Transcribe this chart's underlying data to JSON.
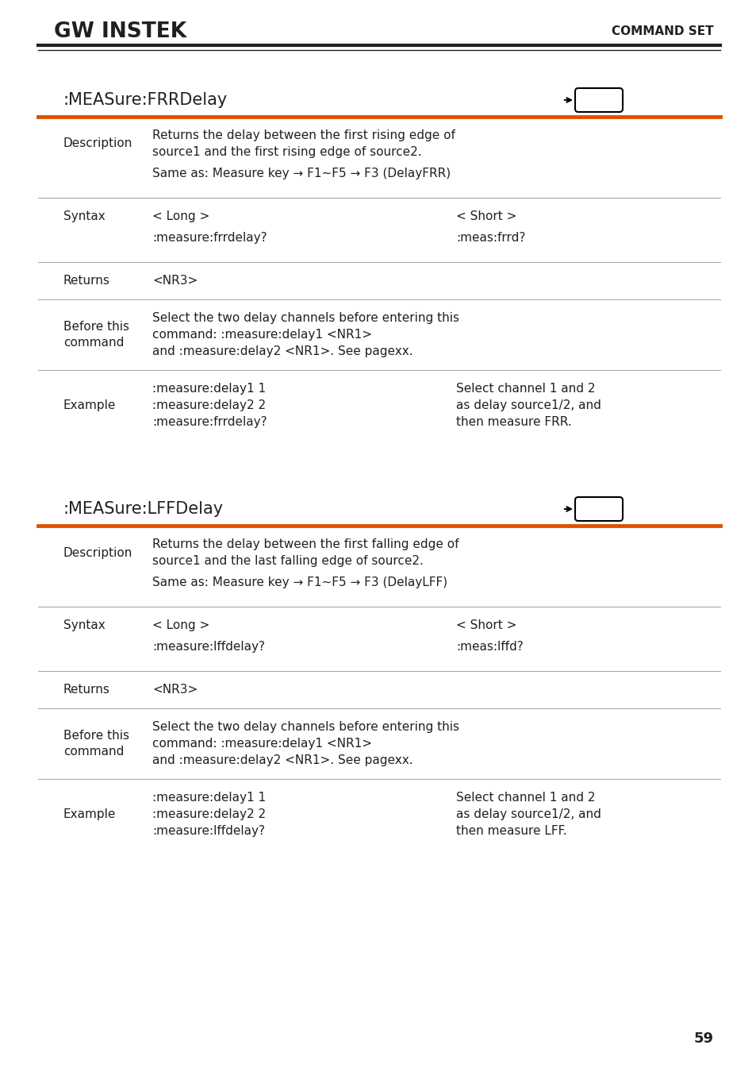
{
  "bg_color": "#ffffff",
  "text_color": "#231f20",
  "orange_color": "#e05000",
  "header_line_color": "#231f20",
  "logo_text": "GW INSTEK",
  "header_right": "COMMAND SET",
  "page_number": "59",
  "section1_title": ":MEASure:FRRDelay",
  "section1_rows": [
    {
      "label": "Description",
      "col2_lines": [
        "Returns the delay between the first rising edge of",
        "source1 and the first rising edge of source2."
      ],
      "col3_lines": [],
      "subrow": true,
      "sub_col2_lines": [
        "Same as: Measure key → F1~F5 → F3 (DelayFRR)"
      ],
      "sub_col3_lines": []
    },
    {
      "label": "Syntax",
      "col2_lines": [
        "< Long >"
      ],
      "col3_lines": [
        "< Short >"
      ],
      "subrow": true,
      "sub_col2_lines": [
        ":measure:frrdelay?"
      ],
      "sub_col3_lines": [
        ":meas:frrd?"
      ]
    },
    {
      "label": "Returns",
      "col2_lines": [
        "<NR3>"
      ],
      "col3_lines": [],
      "subrow": false,
      "sub_col2_lines": [],
      "sub_col3_lines": []
    },
    {
      "label": "Before this\ncommand",
      "col2_lines": [
        "Select the two delay channels before entering this",
        "command: :measure:delay1 <NR1>",
        "and :measure:delay2 <NR1>. See pagexx."
      ],
      "col3_lines": [],
      "subrow": false,
      "sub_col2_lines": [],
      "sub_col3_lines": []
    },
    {
      "label": "Example",
      "col2_lines": [
        ":measure:delay1 1",
        ":measure:delay2 2",
        ":measure:frrdelay?"
      ],
      "col3_lines": [
        "Select channel 1 and 2",
        "as delay source1/2, and",
        "then measure FRR."
      ],
      "subrow": false,
      "sub_col2_lines": [],
      "sub_col3_lines": []
    }
  ],
  "section2_title": ":MEASure:LFFDelay",
  "section2_rows": [
    {
      "label": "Description",
      "col2_lines": [
        "Returns the delay between the first falling edge of",
        "source1 and the last falling edge of source2."
      ],
      "col3_lines": [],
      "subrow": true,
      "sub_col2_lines": [
        "Same as: Measure key → F1~F5 → F3 (DelayLFF)"
      ],
      "sub_col3_lines": []
    },
    {
      "label": "Syntax",
      "col2_lines": [
        "< Long >"
      ],
      "col3_lines": [
        "< Short >"
      ],
      "subrow": true,
      "sub_col2_lines": [
        ":measure:lffdelay?"
      ],
      "sub_col3_lines": [
        ":meas:lffd?"
      ]
    },
    {
      "label": "Returns",
      "col2_lines": [
        "<NR3>"
      ],
      "col3_lines": [],
      "subrow": false,
      "sub_col2_lines": [],
      "sub_col3_lines": []
    },
    {
      "label": "Before this\ncommand",
      "col2_lines": [
        "Select the two delay channels before entering this",
        "command: :measure:delay1 <NR1>",
        "and :measure:delay2 <NR1>. See pagexx."
      ],
      "col3_lines": [],
      "subrow": false,
      "sub_col2_lines": [],
      "sub_col3_lines": []
    },
    {
      "label": "Example",
      "col2_lines": [
        ":measure:delay1 1",
        ":measure:delay2 2",
        ":measure:lffdelay?"
      ],
      "col3_lines": [
        "Select channel 1 and 2",
        "as delay source1/2, and",
        "then measure LFF."
      ],
      "subrow": false,
      "sub_col2_lines": [],
      "sub_col3_lines": []
    }
  ]
}
